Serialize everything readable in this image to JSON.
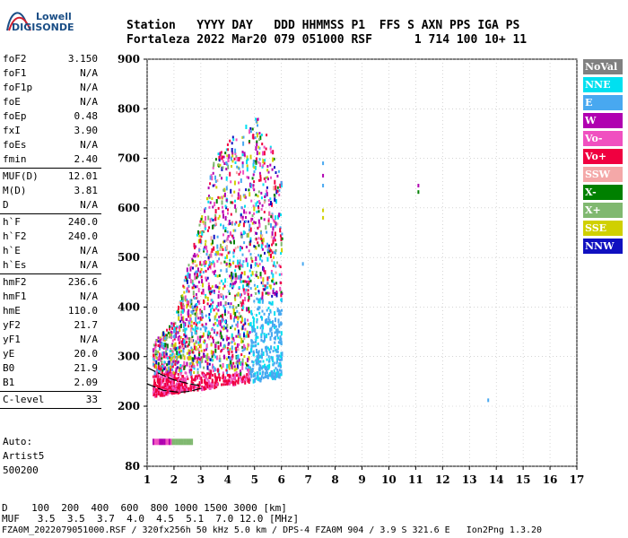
{
  "logo": {
    "line1": "Lowell",
    "line2": "DIGISONDE"
  },
  "header": {
    "row1": "Station   YYYY DAY   DDD HHMMSS P1  FFS S AXN PPS IGA PS",
    "row2": "Fortaleza 2022 Mar20 079 051000 RSF      1 714 100 10+ 11"
  },
  "params": {
    "group1": [
      {
        "label": "foF2",
        "value": "3.150"
      },
      {
        "label": "foF1",
        "value": "N/A"
      },
      {
        "label": "foF1p",
        "value": "N/A"
      },
      {
        "label": "foE",
        "value": "N/A"
      },
      {
        "label": "foEp",
        "value": "0.48"
      },
      {
        "label": "fxI",
        "value": "3.90"
      },
      {
        "label": "foEs",
        "value": "N/A"
      },
      {
        "label": "fmin",
        "value": "2.40"
      }
    ],
    "group2": [
      {
        "label": "MUF(D)",
        "value": "12.01"
      },
      {
        "label": "M(D)",
        "value": "3.81"
      },
      {
        "label": "D",
        "value": "N/A"
      }
    ],
    "group3": [
      {
        "label": "h`F",
        "value": "240.0"
      },
      {
        "label": "h`F2",
        "value": "240.0"
      },
      {
        "label": "h`E",
        "value": "N/A"
      },
      {
        "label": "h`Es",
        "value": "N/A"
      }
    ],
    "group4": [
      {
        "label": "hmF2",
        "value": "236.6"
      },
      {
        "label": "hmF1",
        "value": "N/A"
      },
      {
        "label": "hmE",
        "value": "110.0"
      },
      {
        "label": "yF2",
        "value": "21.7"
      },
      {
        "label": "yF1",
        "value": "N/A"
      },
      {
        "label": "yE",
        "value": "20.0"
      },
      {
        "label": "B0",
        "value": "21.9"
      },
      {
        "label": "B1",
        "value": "2.09"
      }
    ],
    "group5": [
      {
        "label": "C-level",
        "value": "33"
      }
    ]
  },
  "auto": {
    "line1": "Auto:",
    "line2": "Artist5",
    "line3": "500200"
  },
  "legend": [
    {
      "label": "NoVal",
      "color": "#808080"
    },
    {
      "label": "NNE",
      "color": "#00e0f0"
    },
    {
      "label": "E",
      "color": "#48a8f0"
    },
    {
      "label": "W",
      "color": "#b000b0"
    },
    {
      "label": "Vo-",
      "color": "#f050c0"
    },
    {
      "label": "Vo+",
      "color": "#f00040"
    },
    {
      "label": "SSW",
      "color": "#f4a8a8"
    },
    {
      "label": "X-",
      "color": "#008000"
    },
    {
      "label": "X+",
      "color": "#80b870"
    },
    {
      "label": "SSE",
      "color": "#d0d000"
    },
    {
      "label": "NNW",
      "color": "#1010c0"
    }
  ],
  "footer": {
    "line1": "D    100  200  400  600  800 1000 1500 3000 [km]",
    "line2": "MUF   3.5  3.5  3.7  4.0  4.5  5.1  7.0 12.0 [MHz]",
    "line3": "FZA0M_2022079051000.RSF / 320fx256h 50 kHz 5.0 km / DPS-4 FZA0M 904 / 3.9 S 321.6 E   Ion2Png 1.3.20"
  },
  "chart_data": {
    "type": "scatter",
    "title": "",
    "xlabel": "",
    "ylabel": "",
    "xlim": [
      1,
      17
    ],
    "ylim": [
      80,
      900
    ],
    "xticks": [
      "1",
      "2",
      "3",
      "4",
      "5",
      "6",
      "7",
      "8",
      "9",
      "10",
      "11",
      "12",
      "13",
      "14",
      "15",
      "16",
      "17"
    ],
    "yticks": [
      "80",
      "200",
      "300",
      "400",
      "500",
      "600",
      "700",
      "800",
      "900"
    ],
    "grid": "dotted",
    "legend_position": "right",
    "clusters": [
      {
        "name": "ionogram-trace",
        "x_range": [
          1.2,
          6.0
        ],
        "y_range": [
          225,
          870
        ]
      },
      {
        "name": "low-height-band",
        "x_range": [
          1.2,
          2.7
        ],
        "y_range": [
          125,
          135
        ]
      }
    ],
    "isolated_points": [
      {
        "x": 6.8,
        "y": 487,
        "color": "#48a8f0"
      },
      {
        "x": 7.55,
        "y": 690,
        "color": "#48a8f0"
      },
      {
        "x": 7.55,
        "y": 665,
        "color": "#b000b0"
      },
      {
        "x": 7.55,
        "y": 645,
        "color": "#48a8f0"
      },
      {
        "x": 7.55,
        "y": 595,
        "color": "#d0d000"
      },
      {
        "x": 7.55,
        "y": 580,
        "color": "#d0d000"
      },
      {
        "x": 11.1,
        "y": 645,
        "color": "#b000b0"
      },
      {
        "x": 11.1,
        "y": 632,
        "color": "#008000"
      },
      {
        "x": 13.7,
        "y": 212,
        "color": "#48a8f0"
      }
    ],
    "profile_curve": [
      [
        1.0,
        245
      ],
      [
        1.6,
        232
      ],
      [
        2.2,
        228
      ],
      [
        2.6,
        230
      ],
      [
        3.0,
        236
      ],
      [
        2.9,
        242
      ],
      [
        2.5,
        246
      ],
      [
        2.0,
        253
      ],
      [
        1.6,
        262
      ],
      [
        1.3,
        270
      ],
      [
        1.0,
        278
      ]
    ]
  }
}
